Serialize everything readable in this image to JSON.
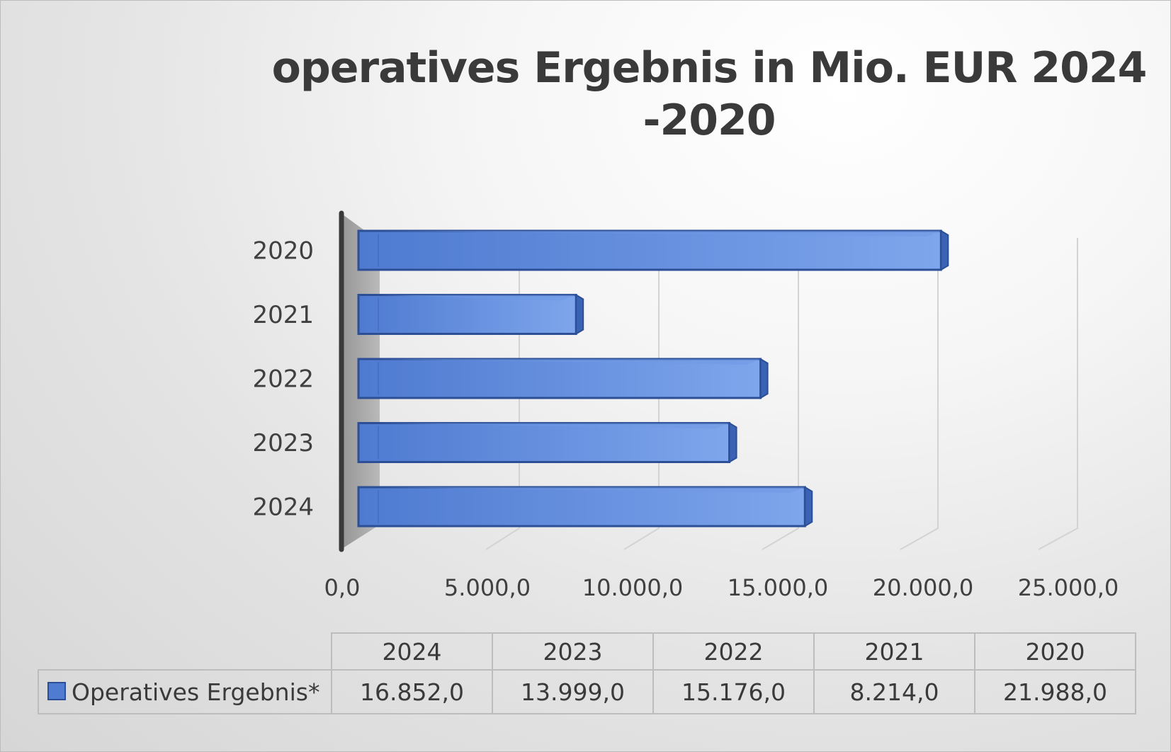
{
  "chart_data": {
    "type": "bar",
    "orientation": "horizontal",
    "three_d": true,
    "title": "operatives Ergebnis in Mio. EUR 2024 -2020",
    "categories": [
      "2024",
      "2023",
      "2022",
      "2021",
      "2020"
    ],
    "series": [
      {
        "name": "Operatives Ergebnis*",
        "values": [
          16852.0,
          13999.0,
          15176.0,
          8214.0,
          21988.0
        ],
        "color": "#4f7bd0"
      }
    ],
    "xlim": [
      0,
      25000
    ],
    "x_ticks": [
      0,
      5000,
      10000,
      15000,
      20000,
      25000
    ],
    "x_tick_labels": [
      "0,0",
      "5.000,0",
      "10.000,0",
      "15.000,0",
      "20.000,0",
      "25.000,0"
    ],
    "grid": true,
    "legend": "data-table",
    "data_table": {
      "header": [
        "2024",
        "2023",
        "2022",
        "2021",
        "2020"
      ],
      "rows": [
        {
          "label": "Operatives Ergebnis*",
          "values": [
            "16.852,0",
            "13.999,0",
            "15.176,0",
            "8.214,0",
            "21.988,0"
          ]
        }
      ]
    }
  }
}
